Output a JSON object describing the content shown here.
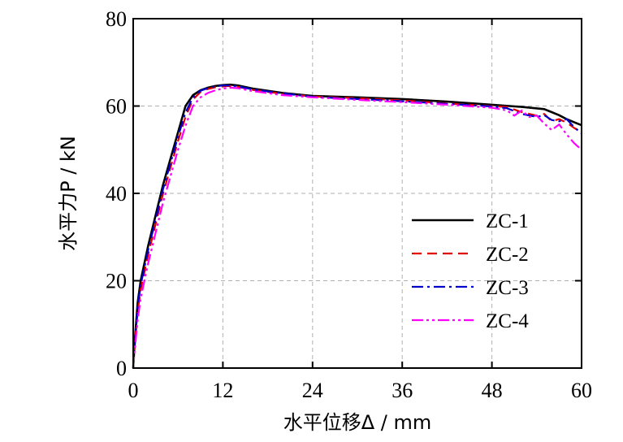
{
  "chart_data": {
    "type": "line",
    "xlabel": "水平位移Δ / mm",
    "ylabel": "水平力P / kN",
    "xlim": [
      0,
      60
    ],
    "ylim": [
      0,
      80
    ],
    "xticks": [
      0,
      12,
      24,
      36,
      48,
      60
    ],
    "yticks": [
      0,
      20,
      40,
      60,
      80
    ],
    "grid": true,
    "legend_position": "lower-right",
    "series": [
      {
        "name": "ZC-1",
        "color": "#000000",
        "dash": "solid",
        "x": [
          0,
          0.2,
          0.6,
          1,
          2,
          3,
          4,
          5,
          6,
          7,
          8,
          9,
          10,
          11,
          12,
          13,
          14,
          16,
          20,
          24,
          30,
          36,
          42,
          48,
          52,
          55,
          56,
          57,
          58,
          59,
          60
        ],
        "y": [
          0,
          6,
          15,
          20,
          28,
          35,
          42,
          48,
          54,
          60,
          62.5,
          63.6,
          64.2,
          64.6,
          64.8,
          64.9,
          64.7,
          64.0,
          63.0,
          62.3,
          62.0,
          61.6,
          61.0,
          60.3,
          59.8,
          59.3,
          58.6,
          57.9,
          57.0,
          56.3,
          55.6
        ]
      },
      {
        "name": "ZC-2",
        "color": "#e00000",
        "dash": "12 7",
        "x": [
          0,
          0.2,
          0.6,
          1,
          2,
          3,
          4,
          5,
          6,
          7,
          8,
          9,
          10,
          11,
          12,
          13,
          14,
          16,
          20,
          24,
          30,
          36,
          42,
          48,
          50,
          52,
          54,
          55,
          56,
          57,
          58,
          59,
          60
        ],
        "y": [
          0,
          5,
          13,
          18,
          26,
          33,
          40,
          46,
          52,
          57.5,
          61.5,
          63.2,
          63.9,
          64.3,
          64.5,
          64.6,
          64.4,
          63.7,
          62.8,
          62.2,
          61.8,
          61.3,
          60.6,
          60.0,
          59.8,
          58.6,
          57.8,
          58.2,
          56.5,
          57.0,
          56.2,
          55.0,
          54.0
        ]
      },
      {
        "name": "ZC-3",
        "color": "#0000cc",
        "dash": "14 5 3 5",
        "x": [
          0,
          0.2,
          0.6,
          1,
          2,
          3,
          4,
          5,
          6,
          7,
          8,
          9,
          10,
          11,
          12,
          13,
          14,
          16,
          20,
          24,
          30,
          36,
          42,
          48,
          50,
          52,
          54,
          55,
          56,
          57,
          58,
          59,
          60
        ],
        "y": [
          0,
          5,
          14,
          19,
          27,
          34,
          41,
          47,
          53,
          58.5,
          62.0,
          63.5,
          64.1,
          64.5,
          64.7,
          64.7,
          64.5,
          63.8,
          62.9,
          62.1,
          61.6,
          61.1,
          60.5,
          59.9,
          59.5,
          58.2,
          57.5,
          57.9,
          56.8,
          56.5,
          57.0,
          55.2,
          53.7
        ]
      },
      {
        "name": "ZC-4",
        "color": "#ff00ff",
        "dash": "14 4 3 4 3 4",
        "x": [
          0,
          0.2,
          0.6,
          1,
          2,
          3,
          4,
          5,
          6,
          7,
          8,
          9,
          10,
          11,
          12,
          13,
          14,
          16,
          20,
          24,
          30,
          36,
          42,
          48,
          50,
          51,
          52,
          53,
          54,
          55,
          56,
          57,
          58,
          59,
          60
        ],
        "y": [
          0,
          4,
          11,
          16,
          24,
          31,
          38,
          44,
          50,
          55.5,
          60.0,
          62.0,
          63.0,
          63.6,
          64.0,
          64.2,
          64.1,
          63.4,
          62.5,
          62.0,
          61.4,
          60.9,
          60.3,
          59.6,
          59.0,
          57.8,
          59.0,
          57.5,
          57.8,
          56.0,
          54.5,
          55.8,
          53.5,
          51.5,
          50.0
        ]
      }
    ]
  }
}
